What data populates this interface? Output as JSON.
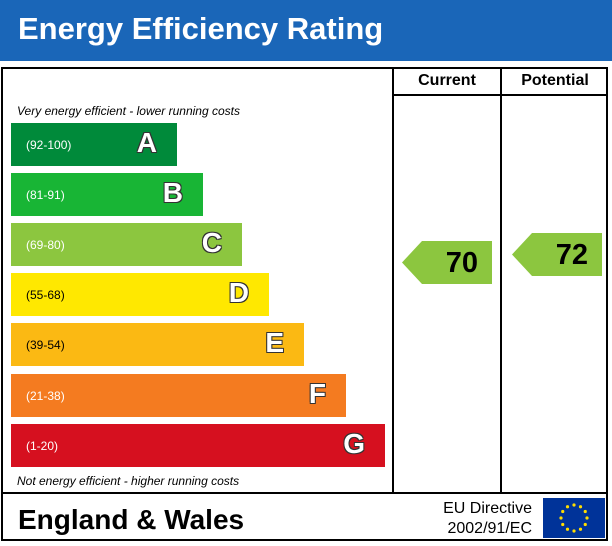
{
  "title": "Energy Efficiency Rating",
  "columns": {
    "current": "Current",
    "potential": "Potential"
  },
  "notes": {
    "top": "Very energy efficient - lower running costs",
    "bottom": "Not energy efficient - higher running costs"
  },
  "bands": [
    {
      "range": "(92-100)",
      "letter": "A",
      "color": "#008a3a"
    },
    {
      "range": "(81-91)",
      "letter": "B",
      "color": "#18b535"
    },
    {
      "range": "(69-80)",
      "letter": "C",
      "color": "#8cc63f"
    },
    {
      "range": "(55-68)",
      "letter": "D",
      "color": "#ffe800"
    },
    {
      "range": "(39-54)",
      "letter": "E",
      "color": "#fbb913"
    },
    {
      "range": "(21-38)",
      "letter": "F",
      "color": "#f47b20"
    },
    {
      "range": "(1-20)",
      "letter": "G",
      "color": "#d6101f"
    }
  ],
  "ratings": {
    "current": {
      "value": "70",
      "band": "C",
      "color": "#8cc63f"
    },
    "potential": {
      "value": "72",
      "band": "C",
      "color": "#8cc63f"
    }
  },
  "footer": {
    "region": "England & Wales",
    "directive_line1": "EU Directive",
    "directive_line2": "2002/91/EC",
    "flag": "eu-flag-icon"
  }
}
